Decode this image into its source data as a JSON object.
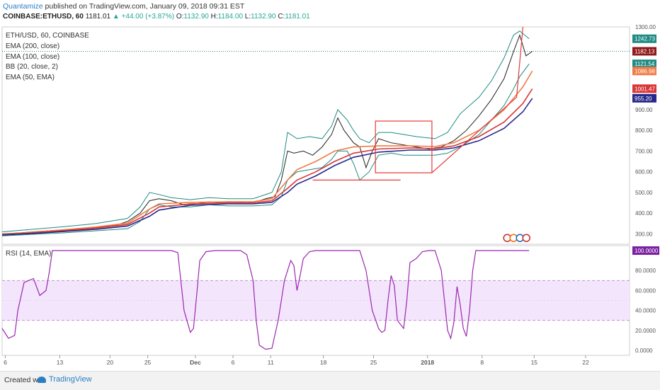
{
  "header": {
    "author": "Quantamize",
    "published": "published on TradingView.com, January 09, 2018 09:31 EST",
    "symbol": "COINBASE:ETHUSD, 60",
    "last": "1181.01",
    "change": "+44.00 (+3.87%)",
    "o_label": "O:",
    "o": "1132.90",
    "h_label": "H:",
    "h": "1184.00",
    "l_label": "L:",
    "l": "1132.90",
    "c_label": "C:",
    "c": "1181.01"
  },
  "legend": [
    "ETH/USD, 60, COINBASE",
    "EMA (200, close)",
    "EMA (100, close)",
    "BB (20, close, 2)",
    "EMA (50, EMA)"
  ],
  "rsi_label": "RSI (14, EMA)",
  "price_tags": [
    {
      "value": 1242.73,
      "text": "1242.73",
      "color": "#1f8a83"
    },
    {
      "value": 1182.13,
      "text": "1182.13",
      "color": "#8e1a1a"
    },
    {
      "value": 1121.54,
      "text": "1121.54",
      "color": "#1f8a83"
    },
    {
      "value": 1086.98,
      "text": "1086.98",
      "color": "#ef7c47"
    },
    {
      "value": 1001.47,
      "text": "1001.47",
      "color": "#d93636"
    },
    {
      "value": 955.2,
      "text": "955.20",
      "color": "#28288c"
    }
  ],
  "rsi_tag": {
    "value": 100,
    "text": "100.0000",
    "color": "#7b1fa2"
  },
  "footer": {
    "created_with": "Created with",
    "brand": "TradingView"
  },
  "chart_data": {
    "type": "line",
    "x_ticks": [
      "6",
      "13",
      "20",
      "25",
      "Dec",
      "6",
      "11",
      "18",
      "25",
      "2018",
      "8",
      "15",
      "22"
    ],
    "price_axis": {
      "ticks": [
        300,
        400,
        500,
        600,
        700,
        800,
        900,
        1300
      ],
      "ylim": [
        250,
        1300
      ]
    },
    "rsi_axis": {
      "ticks": [
        0,
        20,
        40,
        60,
        80
      ],
      "ylim": [
        -5,
        105
      ],
      "band": [
        30,
        70
      ]
    },
    "series": [
      {
        "color": "#222222",
        "points": [
          [
            0,
            300
          ],
          [
            0.03,
            305
          ],
          [
            0.06,
            312
          ],
          [
            0.09,
            318
          ],
          [
            0.12,
            322
          ],
          [
            0.15,
            332
          ],
          [
            0.18,
            340
          ],
          [
            0.2,
            360
          ],
          [
            0.22,
            400
          ],
          [
            0.235,
            460
          ],
          [
            0.25,
            470
          ],
          [
            0.27,
            460
          ],
          [
            0.29,
            440
          ],
          [
            0.31,
            445
          ],
          [
            0.33,
            455
          ],
          [
            0.35,
            450
          ],
          [
            0.37,
            455
          ],
          [
            0.39,
            450
          ],
          [
            0.41,
            460
          ],
          [
            0.42,
            470
          ],
          [
            0.435,
            480
          ],
          [
            0.445,
            560
          ],
          [
            0.455,
            700
          ],
          [
            0.465,
            690
          ],
          [
            0.48,
            700
          ],
          [
            0.495,
            680
          ],
          [
            0.51,
            720
          ],
          [
            0.525,
            780
          ],
          [
            0.535,
            860
          ],
          [
            0.545,
            800
          ],
          [
            0.56,
            740
          ],
          [
            0.57,
            720
          ],
          [
            0.58,
            620
          ],
          [
            0.59,
            700
          ],
          [
            0.6,
            760
          ],
          [
            0.62,
            740
          ],
          [
            0.64,
            730
          ],
          [
            0.66,
            720
          ],
          [
            0.68,
            710
          ],
          [
            0.7,
            720
          ],
          [
            0.72,
            750
          ],
          [
            0.74,
            800
          ],
          [
            0.76,
            870
          ],
          [
            0.78,
            950
          ],
          [
            0.8,
            1050
          ],
          [
            0.815,
            1180
          ],
          [
            0.825,
            1260
          ],
          [
            0.835,
            1160
          ],
          [
            0.845,
            1182
          ]
        ]
      },
      {
        "color": "#1f8a83",
        "points": [
          [
            0,
            310
          ],
          [
            0.05,
            322
          ],
          [
            0.1,
            335
          ],
          [
            0.15,
            350
          ],
          [
            0.2,
            375
          ],
          [
            0.22,
            430
          ],
          [
            0.235,
            500
          ],
          [
            0.25,
            490
          ],
          [
            0.27,
            475
          ],
          [
            0.3,
            465
          ],
          [
            0.33,
            475
          ],
          [
            0.36,
            470
          ],
          [
            0.4,
            470
          ],
          [
            0.43,
            500
          ],
          [
            0.445,
            600
          ],
          [
            0.455,
            790
          ],
          [
            0.47,
            760
          ],
          [
            0.49,
            770
          ],
          [
            0.51,
            760
          ],
          [
            0.525,
            820
          ],
          [
            0.535,
            900
          ],
          [
            0.55,
            850
          ],
          [
            0.56,
            800
          ],
          [
            0.57,
            760
          ],
          [
            0.585,
            740
          ],
          [
            0.6,
            790
          ],
          [
            0.62,
            790
          ],
          [
            0.64,
            780
          ],
          [
            0.66,
            770
          ],
          [
            0.69,
            760
          ],
          [
            0.71,
            790
          ],
          [
            0.73,
            880
          ],
          [
            0.76,
            960
          ],
          [
            0.78,
            1040
          ],
          [
            0.8,
            1150
          ],
          [
            0.815,
            1260
          ],
          [
            0.825,
            1280
          ],
          [
            0.84,
            1243
          ]
        ]
      },
      {
        "color": "#1f8a83",
        "points": [
          [
            0,
            290
          ],
          [
            0.05,
            298
          ],
          [
            0.1,
            305
          ],
          [
            0.15,
            315
          ],
          [
            0.2,
            325
          ],
          [
            0.22,
            360
          ],
          [
            0.235,
            420
          ],
          [
            0.25,
            440
          ],
          [
            0.27,
            430
          ],
          [
            0.3,
            430
          ],
          [
            0.33,
            440
          ],
          [
            0.36,
            435
          ],
          [
            0.4,
            435
          ],
          [
            0.43,
            440
          ],
          [
            0.445,
            480
          ],
          [
            0.455,
            560
          ],
          [
            0.47,
            600
          ],
          [
            0.49,
            610
          ],
          [
            0.51,
            620
          ],
          [
            0.525,
            660
          ],
          [
            0.535,
            700
          ],
          [
            0.55,
            700
          ],
          [
            0.56,
            640
          ],
          [
            0.57,
            560
          ],
          [
            0.585,
            600
          ],
          [
            0.6,
            680
          ],
          [
            0.62,
            690
          ],
          [
            0.64,
            680
          ],
          [
            0.66,
            680
          ],
          [
            0.69,
            680
          ],
          [
            0.71,
            690
          ],
          [
            0.73,
            720
          ],
          [
            0.76,
            780
          ],
          [
            0.78,
            850
          ],
          [
            0.8,
            920
          ],
          [
            0.815,
            1000
          ],
          [
            0.825,
            1060
          ],
          [
            0.84,
            1121
          ]
        ]
      },
      {
        "color": "#ef7c47",
        "points": [
          [
            0,
            298
          ],
          [
            0.05,
            308
          ],
          [
            0.1,
            320
          ],
          [
            0.15,
            333
          ],
          [
            0.2,
            352
          ],
          [
            0.235,
            420
          ],
          [
            0.25,
            445
          ],
          [
            0.3,
            452
          ],
          [
            0.36,
            455
          ],
          [
            0.4,
            455
          ],
          [
            0.43,
            470
          ],
          [
            0.455,
            560
          ],
          [
            0.47,
            610
          ],
          [
            0.5,
            650
          ],
          [
            0.53,
            700
          ],
          [
            0.56,
            720
          ],
          [
            0.6,
            725
          ],
          [
            0.65,
            725
          ],
          [
            0.69,
            722
          ],
          [
            0.72,
            740
          ],
          [
            0.76,
            800
          ],
          [
            0.8,
            900
          ],
          [
            0.83,
            1010
          ],
          [
            0.845,
            1087
          ]
        ]
      },
      {
        "color": "#d93636",
        "points": [
          [
            0,
            296
          ],
          [
            0.05,
            305
          ],
          [
            0.1,
            316
          ],
          [
            0.15,
            328
          ],
          [
            0.2,
            345
          ],
          [
            0.235,
            400
          ],
          [
            0.25,
            430
          ],
          [
            0.3,
            445
          ],
          [
            0.36,
            450
          ],
          [
            0.4,
            450
          ],
          [
            0.43,
            460
          ],
          [
            0.455,
            520
          ],
          [
            0.47,
            560
          ],
          [
            0.5,
            600
          ],
          [
            0.53,
            650
          ],
          [
            0.56,
            690
          ],
          [
            0.6,
            710
          ],
          [
            0.65,
            715
          ],
          [
            0.69,
            712
          ],
          [
            0.72,
            725
          ],
          [
            0.76,
            770
          ],
          [
            0.8,
            840
          ],
          [
            0.83,
            930
          ],
          [
            0.845,
            1001
          ]
        ]
      },
      {
        "color": "#28288c",
        "points": [
          [
            0,
            294
          ],
          [
            0.05,
            302
          ],
          [
            0.1,
            312
          ],
          [
            0.15,
            322
          ],
          [
            0.2,
            338
          ],
          [
            0.235,
            385
          ],
          [
            0.25,
            415
          ],
          [
            0.3,
            438
          ],
          [
            0.36,
            445
          ],
          [
            0.4,
            445
          ],
          [
            0.43,
            452
          ],
          [
            0.455,
            500
          ],
          [
            0.47,
            540
          ],
          [
            0.5,
            580
          ],
          [
            0.53,
            630
          ],
          [
            0.56,
            670
          ],
          [
            0.6,
            695
          ],
          [
            0.65,
            705
          ],
          [
            0.69,
            705
          ],
          [
            0.72,
            715
          ],
          [
            0.76,
            750
          ],
          [
            0.8,
            810
          ],
          [
            0.83,
            890
          ],
          [
            0.845,
            955
          ]
        ]
      }
    ],
    "rsi": {
      "color": "#9c27b0",
      "points": [
        [
          0,
          22
        ],
        [
          0.01,
          12
        ],
        [
          0.02,
          15
        ],
        [
          0.025,
          40
        ],
        [
          0.035,
          68
        ],
        [
          0.05,
          72
        ],
        [
          0.06,
          55
        ],
        [
          0.07,
          60
        ],
        [
          0.075,
          78
        ],
        [
          0.08,
          100
        ],
        [
          0.2,
          100
        ],
        [
          0.21,
          100
        ],
        [
          0.25,
          100
        ],
        [
          0.27,
          100
        ],
        [
          0.28,
          98
        ],
        [
          0.29,
          40
        ],
        [
          0.3,
          18
        ],
        [
          0.305,
          22
        ],
        [
          0.31,
          55
        ],
        [
          0.315,
          90
        ],
        [
          0.325,
          99
        ],
        [
          0.34,
          100
        ],
        [
          0.36,
          100
        ],
        [
          0.38,
          100
        ],
        [
          0.39,
          96
        ],
        [
          0.4,
          70
        ],
        [
          0.405,
          30
        ],
        [
          0.41,
          5
        ],
        [
          0.42,
          1
        ],
        [
          0.43,
          2
        ],
        [
          0.44,
          30
        ],
        [
          0.45,
          70
        ],
        [
          0.455,
          80
        ],
        [
          0.46,
          90
        ],
        [
          0.465,
          85
        ],
        [
          0.47,
          60
        ],
        [
          0.475,
          75
        ],
        [
          0.48,
          92
        ],
        [
          0.49,
          99
        ],
        [
          0.5,
          100
        ],
        [
          0.56,
          100
        ],
        [
          0.57,
          100
        ],
        [
          0.58,
          80
        ],
        [
          0.59,
          40
        ],
        [
          0.6,
          22
        ],
        [
          0.605,
          18
        ],
        [
          0.61,
          20
        ],
        [
          0.615,
          50
        ],
        [
          0.62,
          75
        ],
        [
          0.625,
          65
        ],
        [
          0.63,
          30
        ],
        [
          0.64,
          22
        ],
        [
          0.645,
          50
        ],
        [
          0.65,
          88
        ],
        [
          0.66,
          92
        ],
        [
          0.67,
          99
        ],
        [
          0.68,
          100
        ],
        [
          0.69,
          100
        ],
        [
          0.7,
          80
        ],
        [
          0.705,
          50
        ],
        [
          0.71,
          20
        ],
        [
          0.715,
          12
        ],
        [
          0.72,
          28
        ],
        [
          0.725,
          64
        ],
        [
          0.73,
          46
        ],
        [
          0.735,
          22
        ],
        [
          0.74,
          14
        ],
        [
          0.745,
          40
        ],
        [
          0.75,
          80
        ],
        [
          0.755,
          100
        ],
        [
          0.77,
          100
        ],
        [
          0.8,
          100
        ],
        [
          0.84,
          100
        ]
      ]
    },
    "annotations": {
      "rect": {
        "x0": 0.595,
        "x1": 0.685,
        "y0": 595,
        "y1": 845,
        "color": "#e53935"
      },
      "support": {
        "x0": 0.495,
        "x1": 0.635,
        "y": 560,
        "color": "#e53935"
      },
      "trend": [
        {
          "x": 0.685,
          "y": 595
        },
        {
          "x": 0.82,
          "y": 960
        },
        {
          "x": 0.83,
          "y": 1300
        }
      ],
      "trend_color": "#e53935"
    }
  }
}
